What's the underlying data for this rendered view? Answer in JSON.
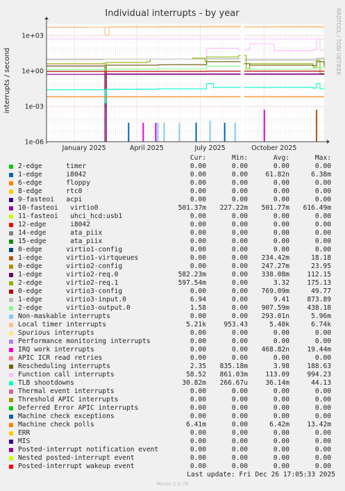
{
  "chart_data": {
    "type": "line",
    "title": "Individual interrupts - by year",
    "ylabel": "interrupts / second",
    "yscale": "log",
    "ylim": [
      1e-06,
      10000
    ],
    "yticks": [
      {
        "value": 1e-06,
        "label": "1e-06"
      },
      {
        "value": 0.001,
        "label": "1e-03"
      },
      {
        "value": 1,
        "label": "1e+00"
      },
      {
        "value": 1000,
        "label": "1e+03"
      }
    ],
    "xlim": [
      "2024-11-22",
      "2025-12-26"
    ],
    "xticks": [
      "January 2025",
      "April 2025",
      "July 2025",
      "October 2025"
    ],
    "side_label": "RRDTOOL / TOBI OETIKER",
    "columns": {
      "cur": "Cur:",
      "min": "Min:",
      "avg": "Avg:",
      "max": "Max:"
    },
    "series": [
      {
        "name": "2-edge      timer",
        "color": "#00cc00",
        "cur": "0.00",
        "min": "0.00",
        "avg": "0.00",
        "max": "0.00"
      },
      {
        "name": "1-edge      i8042",
        "color": "#0066b3",
        "cur": "0.00",
        "min": "0.00",
        "avg": "61.82n",
        "max": "6.38m"
      },
      {
        "name": "6-edge      floppy",
        "color": "#ff8000",
        "cur": "0.00",
        "min": "0.00",
        "avg": "0.00",
        "max": "0.00"
      },
      {
        "name": "8-edge      rtc0",
        "color": "#ffcc00",
        "cur": "0.00",
        "min": "0.00",
        "avg": "0.00",
        "max": "0.00"
      },
      {
        "name": "9-fasteoi   acpi",
        "color": "#330099",
        "cur": "0.00",
        "min": "0.00",
        "avg": "0.00",
        "max": "0.00"
      },
      {
        "name": "10-fasteoi   virtio0",
        "color": "#990099",
        "cur": "501.37m",
        "min": "227.22m",
        "avg": "501.77m",
        "max": "616.49m"
      },
      {
        "name": "11-fasteoi   uhci_hcd:usb1",
        "color": "#ccff00",
        "cur": "0.00",
        "min": "0.00",
        "avg": "0.00",
        "max": "0.00"
      },
      {
        "name": "12-edge      i8042",
        "color": "#ff0000",
        "cur": "0.00",
        "min": "0.00",
        "avg": "0.00",
        "max": "0.00"
      },
      {
        "name": "14-edge      ata_piix",
        "color": "#808080",
        "cur": "0.00",
        "min": "0.00",
        "avg": "0.00",
        "max": "0.00"
      },
      {
        "name": "15-edge      ata_piix",
        "color": "#008f00",
        "cur": "0.00",
        "min": "0.00",
        "avg": "0.00",
        "max": "0.00"
      },
      {
        "name": "0-edge      virtio1-config",
        "color": "#00487d",
        "cur": "0.00",
        "min": "0.00",
        "avg": "0.00",
        "max": "0.00"
      },
      {
        "name": "1-edge      virtio1-virtqueues",
        "color": "#b35a00",
        "cur": "0.00",
        "min": "0.00",
        "avg": "234.42m",
        "max": "18.18"
      },
      {
        "name": "0-edge      virtio2-config",
        "color": "#b38f00",
        "cur": "0.00",
        "min": "0.00",
        "avg": "247.27m",
        "max": "23.95"
      },
      {
        "name": "1-edge      virtio2-req.0",
        "color": "#6b006b",
        "cur": "582.23m",
        "min": "0.00",
        "avg": "338.08m",
        "max": "112.15"
      },
      {
        "name": "2-edge      virtio2-req.1",
        "color": "#8fb300",
        "cur": "597.54m",
        "min": "0.00",
        "avg": "3.32",
        "max": "175.13"
      },
      {
        "name": "0-edge      virtio3-config",
        "color": "#b30000",
        "cur": "0.00",
        "min": "0.00",
        "avg": "769.09m",
        "max": "49.77"
      },
      {
        "name": "1-edge      virtio3-input.0",
        "color": "#bebebe",
        "cur": "6.94",
        "min": "0.00",
        "avg": "9.41",
        "max": "873.89"
      },
      {
        "name": "2-edge      virtio3-output.0",
        "color": "#80ff80",
        "cur": "1.58",
        "min": "0.00",
        "avg": "907.59m",
        "max": "438.18"
      },
      {
        "name": "Non-maskable interrupts",
        "color": "#80c9ff",
        "cur": "0.00",
        "min": "0.00",
        "avg": "293.01n",
        "max": "5.96m"
      },
      {
        "name": "Local timer interrupts",
        "color": "#ffc080",
        "cur": "5.21k",
        "min": "953.43",
        "avg": "5.48k",
        "max": "6.74k"
      },
      {
        "name": "Spurious interrupts",
        "color": "#ffe680",
        "cur": "0.00",
        "min": "0.00",
        "avg": "0.00",
        "max": "0.00"
      },
      {
        "name": "Performance monitoring interrupts",
        "color": "#aa80ff",
        "cur": "0.00",
        "min": "0.00",
        "avg": "0.00",
        "max": "0.00"
      },
      {
        "name": "IRQ work interrupts",
        "color": "#ee00cc",
        "cur": "0.00",
        "min": "0.00",
        "avg": "468.82n",
        "max": "19.44m"
      },
      {
        "name": "APIC ICR read retries",
        "color": "#ff8080",
        "cur": "0.00",
        "min": "0.00",
        "avg": "0.00",
        "max": "0.00"
      },
      {
        "name": "Rescheduling interrupts",
        "color": "#666600",
        "cur": "2.35",
        "min": "835.18m",
        "avg": "3.98",
        "max": "188.63"
      },
      {
        "name": "Function call interrupts",
        "color": "#ffbfff",
        "cur": "58.52",
        "min": "861.03m",
        "avg": "113.09",
        "max": "994.23"
      },
      {
        "name": "TLB shootdowns",
        "color": "#00ffcc",
        "cur": "30.82m",
        "min": "266.67u",
        "avg": "36.14m",
        "max": "44.13"
      },
      {
        "name": "Thermal event interrupts",
        "color": "#cc6699",
        "cur": "0.00",
        "min": "0.00",
        "avg": "0.00",
        "max": "0.00"
      },
      {
        "name": "Threshold APIC interrupts",
        "color": "#999900",
        "cur": "0.00",
        "min": "0.00",
        "avg": "0.00",
        "max": "0.00"
      },
      {
        "name": "Deferred Error APIC interrupts",
        "color": "#00cc00",
        "cur": "0.00",
        "min": "0.00",
        "avg": "0.00",
        "max": "0.00"
      },
      {
        "name": "Machine check exceptions",
        "color": "#0066b3",
        "cur": "0.00",
        "min": "0.00",
        "avg": "0.00",
        "max": "0.00"
      },
      {
        "name": "Machine check polls",
        "color": "#ff8000",
        "cur": "6.41m",
        "min": "0.00",
        "avg": "6.42m",
        "max": "13.42m"
      },
      {
        "name": "ERR",
        "color": "#ffcc00",
        "cur": "0.00",
        "min": "0.00",
        "avg": "0.00",
        "max": "0.00"
      },
      {
        "name": "MIS",
        "color": "#330099",
        "cur": "0.00",
        "min": "0.00",
        "avg": "0.00",
        "max": "0.00"
      },
      {
        "name": "Posted-interrupt notification event",
        "color": "#990099",
        "cur": "0.00",
        "min": "0.00",
        "avg": "0.00",
        "max": "0.00"
      },
      {
        "name": "Nested posted-interrupt event",
        "color": "#ccff00",
        "cur": "0.00",
        "min": "0.00",
        "avg": "0.00",
        "max": "0.00"
      },
      {
        "name": "Posted-interrupt wakeup event",
        "color": "#ff0000",
        "cur": "0.00",
        "min": "0.00",
        "avg": "0.00",
        "max": "0.00"
      }
    ],
    "traces": [
      {
        "series": "Local timer interrupts",
        "points": [
          [
            "2024-11-22",
            4800
          ],
          [
            "2025-01-20",
            5100
          ],
          [
            "2025-02-12",
            5300
          ],
          [
            "2025-02-14",
            1100
          ],
          [
            "2025-02-20",
            5400
          ],
          [
            "2025-05-01",
            5600
          ],
          [
            "2025-07-10",
            6000
          ],
          [
            "2025-09-01",
            5300
          ],
          [
            "2025-10-15",
            5600
          ],
          [
            "2025-12-26",
            5210
          ]
        ]
      },
      {
        "name": "",
        "series": "Function call interrupts",
        "points": [
          [
            "2024-11-22",
            3
          ],
          [
            "2025-02-12",
            3
          ],
          [
            "2025-02-14",
            0.9
          ],
          [
            "2025-02-16",
            3.2
          ],
          [
            "2025-05-15",
            3.5
          ],
          [
            "2025-07-08",
            3.6
          ],
          [
            "2025-07-10",
            80
          ],
          [
            "2025-08-20",
            80
          ],
          [
            "2025-08-25",
            60
          ],
          [
            "2025-09-05",
            60
          ],
          [
            "2025-09-10",
            200
          ],
          [
            "2025-10-10",
            180
          ],
          [
            "2025-10-15",
            50
          ],
          [
            "2025-12-10",
            60
          ],
          [
            "2025-12-15",
            500
          ],
          [
            "2025-12-20",
            58.52
          ],
          [
            "2025-12-26",
            58.52
          ]
        ]
      },
      {
        "series": "2-edge      virtio2-req.1",
        "points": [
          [
            "2024-11-22",
            4
          ],
          [
            "2025-02-12",
            4.5
          ],
          [
            "2025-02-14",
            0.002
          ],
          [
            "2025-02-16",
            5
          ],
          [
            "2025-04-15",
            6
          ],
          [
            "2025-04-20",
            10
          ],
          [
            "2025-06-20",
            12
          ],
          [
            "2025-07-08",
            6
          ],
          [
            "2025-07-10",
            15
          ],
          [
            "2025-08-25",
            20
          ],
          [
            "2025-09-05",
            1.5
          ],
          [
            "2025-09-10",
            4
          ],
          [
            "2025-12-10",
            2
          ],
          [
            "2025-12-15",
            8
          ],
          [
            "2025-12-20",
            0.6
          ],
          [
            "2025-12-26",
            0.6
          ]
        ]
      },
      {
        "series": "Rescheduling interrupts",
        "points": [
          [
            "2024-11-22",
            2.5
          ],
          [
            "2025-02-12",
            2.6
          ],
          [
            "2025-02-14",
            0.001
          ],
          [
            "2025-02-16",
            3
          ],
          [
            "2025-05-01",
            3.3
          ],
          [
            "2025-07-10",
            6
          ],
          [
            "2025-09-01",
            4
          ],
          [
            "2025-09-10",
            3
          ],
          [
            "2025-12-10",
            2.8
          ],
          [
            "2025-12-15",
            6
          ],
          [
            "2025-12-26",
            2.35
          ]
        ]
      },
      {
        "series": "1-edge      virtio3-input.0",
        "points": [
          [
            "2024-11-22",
            9
          ],
          [
            "2025-02-12",
            10
          ],
          [
            "2025-07-10",
            11
          ],
          [
            "2025-09-01",
            8
          ],
          [
            "2025-12-15",
            12
          ],
          [
            "2025-12-26",
            6.94
          ]
        ]
      },
      {
        "series": "2-edge      virtio3-output.0",
        "points": [
          [
            "2024-11-22",
            1.3
          ],
          [
            "2025-02-12",
            1.4
          ],
          [
            "2025-05-01",
            1.5
          ],
          [
            "2025-07-10",
            2.5
          ],
          [
            "2025-09-01",
            1.4
          ],
          [
            "2025-12-15",
            2
          ],
          [
            "2025-12-26",
            1.58
          ]
        ]
      },
      {
        "series": "0-edge      virtio3-config",
        "points": [
          [
            "2024-11-22",
            0.9
          ],
          [
            "2025-02-12",
            0.9
          ],
          [
            "2025-02-14",
            1e-06
          ],
          [
            "2025-02-16",
            0.9
          ],
          [
            "2025-07-10",
            0.95
          ],
          [
            "2025-12-26",
            0.9
          ]
        ]
      },
      {
        "series": "1-edge      virtio2-req.0",
        "points": [
          [
            "2024-11-22",
            0.5
          ],
          [
            "2025-02-12",
            0.5
          ],
          [
            "2025-02-14",
            1e-06
          ],
          [
            "2025-02-16",
            0.55
          ],
          [
            "2025-12-26",
            0.58
          ]
        ]
      },
      {
        "series": "10-fasteoi   virtio0",
        "points": [
          [
            "2024-11-22",
            0.5
          ],
          [
            "2025-12-26",
            0.5
          ]
        ]
      },
      {
        "series": "TLB shootdowns",
        "points": [
          [
            "2024-11-22",
            0.025
          ],
          [
            "2025-02-12",
            0.025
          ],
          [
            "2025-02-14",
            0.002
          ],
          [
            "2025-02-16",
            0.028
          ],
          [
            "2025-05-01",
            0.03
          ],
          [
            "2025-07-08",
            0.03
          ],
          [
            "2025-07-10",
            0.08
          ],
          [
            "2025-07-20",
            0.04
          ],
          [
            "2025-12-10",
            0.035
          ],
          [
            "2025-12-15",
            0.08
          ],
          [
            "2025-12-20",
            0.03
          ],
          [
            "2025-12-26",
            0.031
          ]
        ]
      },
      {
        "series": "Machine check polls",
        "points": [
          [
            "2024-11-22",
            0.0064
          ],
          [
            "2025-12-26",
            0.0064
          ]
        ]
      }
    ],
    "spikes": [
      {
        "series": "IRQ work interrupts",
        "date": "2025-04-10",
        "value": 4e-05
      },
      {
        "series": "IRQ work interrupts",
        "date": "2025-04-28",
        "value": 4e-05
      },
      {
        "series": "IRQ work interrupts",
        "date": "2025-10-01",
        "value": 0.0005
      },
      {
        "series": "Non-maskable interrupts",
        "date": "2025-05-01",
        "value": 4e-05
      },
      {
        "series": "Non-maskable interrupts",
        "date": "2025-05-10",
        "value": 4e-05
      },
      {
        "series": "Non-maskable interrupts",
        "date": "2025-06-01",
        "value": 4e-05
      },
      {
        "series": "Non-maskable interrupts",
        "date": "2025-07-15",
        "value": 6e-05
      },
      {
        "series": "Non-maskable interrupts",
        "date": "2025-08-20",
        "value": 4e-05
      },
      {
        "series": "1-edge      i8042",
        "date": "2025-03-20",
        "value": 4e-05
      },
      {
        "series": "1-edge      i8042",
        "date": "2025-06-25",
        "value": 4e-05
      },
      {
        "series": "1-edge      i8042",
        "date": "2025-08-05",
        "value": 4e-05
      },
      {
        "series": "1-edge      virtio1-virtqueues",
        "date": "2025-12-15",
        "value": 0.0005
      }
    ],
    "hlines": [
      {
        "series": "Local timer interrupts",
        "value": 5000
      },
      {
        "series": "Function call interrupts",
        "value": 500
      },
      {
        "series": "1-edge      virtio3-input.0",
        "value": 10
      }
    ],
    "gap": [
      "2025-08-28",
      "2025-09-02"
    ]
  },
  "footer": {
    "last_update": "Last update: Fri Dec 26 17:05:33 2025",
    "munin_version": "Munin 2.0.76"
  }
}
